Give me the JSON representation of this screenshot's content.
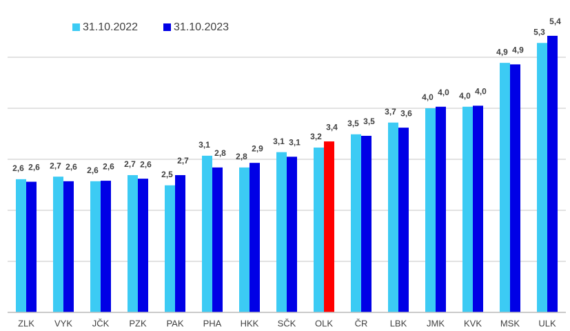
{
  "chart_data": {
    "type": "bar",
    "categories": [
      "ZLK",
      "VYK",
      "JČK",
      "PZK",
      "PAK",
      "PHA",
      "HKK",
      "SČK",
      "OLK",
      "ČR",
      "LBK",
      "JMK",
      "KVK",
      "MSK",
      "ULK"
    ],
    "series": [
      {
        "name": "31.10.2022",
        "color": "#3ccbf4",
        "values": [
          2.61,
          2.66,
          2.57,
          2.69,
          2.49,
          3.07,
          2.84,
          3.14,
          3.23,
          3.49,
          3.72,
          4.0,
          4.03,
          4.89,
          5.28
        ],
        "value_labels": [
          "2,6",
          "2,7",
          "2,6",
          "2,7",
          "2,5",
          "3,1",
          "2,8",
          "3,1",
          "3,2",
          "3,5",
          "3,7",
          "4,0",
          "4,0",
          "4,9",
          "5,3"
        ]
      },
      {
        "name": "31.10.2023",
        "color": "#0000e6",
        "colors": [
          "#0000e6",
          "#0000e6",
          "#0000e6",
          "#0000e6",
          "#0000e6",
          "#0000e6",
          "#0000e6",
          "#0000e6",
          "#ff0000",
          "#0000e6",
          "#0000e6",
          "#0000e6",
          "#0000e6",
          "#0000e6",
          "#0000e6"
        ],
        "values": [
          2.56,
          2.57,
          2.58,
          2.62,
          2.69,
          2.84,
          2.93,
          3.05,
          3.35,
          3.46,
          3.62,
          4.03,
          4.05,
          4.86,
          5.42
        ],
        "value_labels": [
          "2,6",
          "2,6",
          "2,6",
          "2,6",
          "2,7",
          "2,8",
          "2,9",
          "3,1",
          "3,4",
          "3,5",
          "3,6",
          "4,0",
          "4,0",
          "4,9",
          "5,4"
        ]
      }
    ],
    "ylim": [
      0,
      6
    ],
    "yticks": [
      0,
      1,
      2,
      3,
      4,
      5
    ],
    "grid": true
  }
}
